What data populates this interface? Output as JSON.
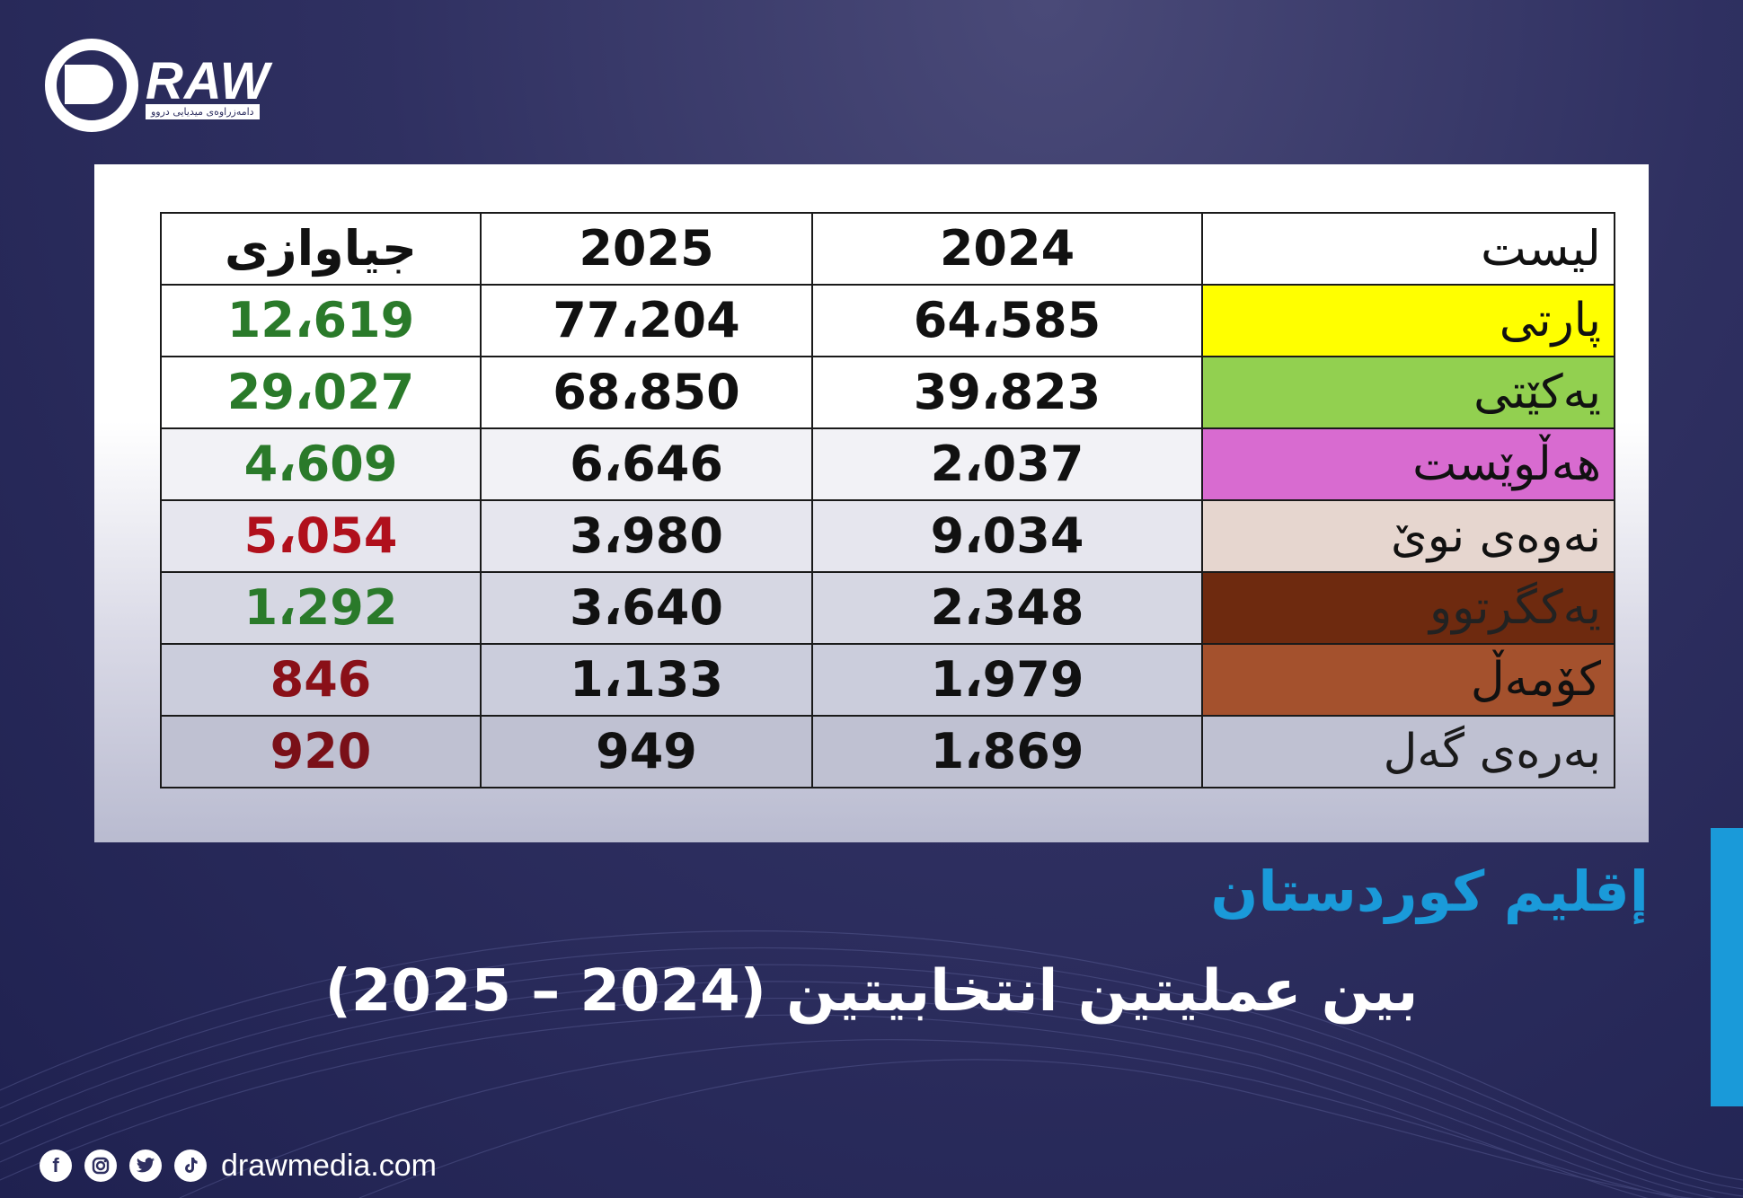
{
  "brand": {
    "logo_text": "RAW",
    "logo_sub": "دامەزراوەی میدیایی دروو"
  },
  "colors": {
    "background": "#2f3061",
    "accent": "#1a9ad9",
    "positive": "#2a7a2a",
    "negative": "#b0101c",
    "negative_dark": "#7a1018"
  },
  "chart_data": {
    "type": "table",
    "columns": [
      "لیست",
      "2024",
      "2025",
      "جیاوازی"
    ],
    "rows": [
      {
        "list": "پارتی",
        "y2024": "64،585",
        "y2025": "77،204",
        "diff": "12،619",
        "list_color": "#ffff00",
        "list_text": "#111111",
        "diff_color": "#2a7a2a",
        "row_bg": "#ffffff"
      },
      {
        "list": "یەکێتی",
        "y2024": "39،823",
        "y2025": "68،850",
        "diff": "29،027",
        "list_color": "#92d050",
        "list_text": "#111111",
        "diff_color": "#2a7a2a",
        "row_bg": "#ffffff"
      },
      {
        "list": "هەڵوێست",
        "y2024": "2،037",
        "y2025": "6،646",
        "diff": "4،609",
        "list_color": "#d86bd0",
        "list_text": "#111111",
        "diff_color": "#2a7a2a",
        "row_bg": "#f2f2f6"
      },
      {
        "list": "نەوەی نوێ",
        "y2024": "9،034",
        "y2025": "3،980",
        "diff": "5،054",
        "list_color": "#e6d6cf",
        "list_text": "#111111",
        "diff_color": "#b0101c",
        "row_bg": "#e6e6ee"
      },
      {
        "list": "یەکگرتوو",
        "y2024": "2،348",
        "y2025": "3،640",
        "diff": "1،292",
        "list_color": "#6e2a0f",
        "list_text": "#222222",
        "diff_color": "#2a7a2a",
        "row_bg": "#d6d7e3"
      },
      {
        "list": "کۆمەڵ",
        "y2024": "1،979",
        "y2025": "1،133",
        "diff": "846",
        "list_color": "#a4512d",
        "list_text": "#111111",
        "diff_color": "#8a1018",
        "row_bg": "#cbcddc"
      },
      {
        "list": "بەرەی گەل",
        "y2024": "1،869",
        "y2025": "949",
        "diff": "920",
        "list_color": "#bfc1d2",
        "list_text": "#1a1a1a",
        "diff_color": "#7a1018",
        "row_bg": "#bfc1d2"
      }
    ]
  },
  "subtitle": "إقليم كوردستان",
  "title": "بين عمليتين انتخابيتين (2024 – 2025)",
  "footer": {
    "icons": [
      "facebook-icon",
      "instagram-icon",
      "twitter-icon",
      "tiktok-icon"
    ],
    "site": "drawmedia.com"
  }
}
